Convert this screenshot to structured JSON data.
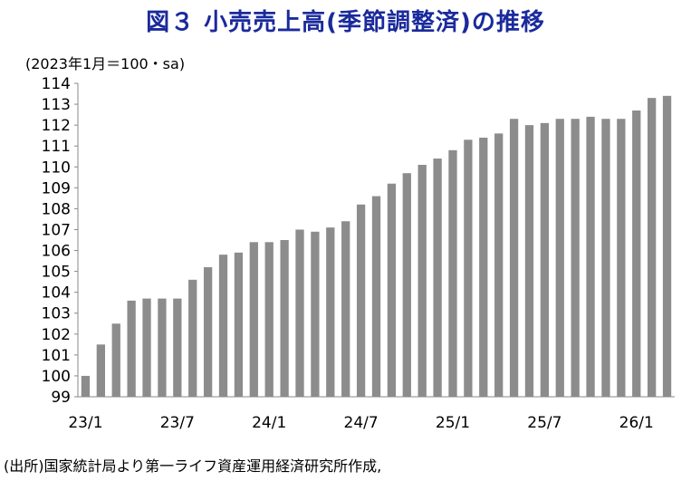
{
  "title": "図３ 小売売上高(季節調整済)の推移",
  "unit_label": "(2023年1月＝100・sa)",
  "source": "(出所)国家統計局より第一ライフ資産運用経済研究所作成,",
  "colors": {
    "title": "#1a2a9c",
    "bar": "#8c8c8c",
    "axis": "#888888"
  },
  "chart_data": {
    "type": "bar",
    "title": "図３ 小売売上高(季節調整済)の推移",
    "ylabel": "(2023年1月＝100・sa)",
    "xlabel": "",
    "ylim": [
      99,
      114
    ],
    "yticks": [
      99,
      100,
      101,
      102,
      103,
      104,
      105,
      106,
      107,
      108,
      109,
      110,
      111,
      112,
      113,
      114
    ],
    "grid": false,
    "categories": [
      "23/1",
      "23/2",
      "23/3",
      "23/4",
      "23/5",
      "23/6",
      "23/7",
      "23/8",
      "23/9",
      "23/10",
      "23/11",
      "23/12",
      "24/1",
      "24/2",
      "24/3",
      "24/4",
      "24/5",
      "24/6",
      "24/7",
      "24/8",
      "24/9",
      "24/10",
      "24/11",
      "24/12",
      "25/1",
      "25/2",
      "25/3",
      "25/4",
      "25/5",
      "25/6",
      "25/7",
      "25/8",
      "25/9",
      "25/10",
      "25/11",
      "25/12",
      "26/1",
      "26/2",
      "26/3"
    ],
    "xtick_labels": [
      {
        "index": 0,
        "label": "23/1"
      },
      {
        "index": 6,
        "label": "23/7"
      },
      {
        "index": 12,
        "label": "24/1"
      },
      {
        "index": 18,
        "label": "24/7"
      },
      {
        "index": 24,
        "label": "25/1"
      },
      {
        "index": 30,
        "label": "25/7"
      },
      {
        "index": 36,
        "label": "26/1"
      }
    ],
    "values": [
      100.0,
      101.5,
      102.5,
      103.6,
      103.7,
      103.7,
      103.7,
      104.6,
      105.2,
      105.8,
      105.9,
      106.4,
      106.4,
      106.5,
      107.0,
      106.9,
      107.1,
      107.4,
      108.2,
      108.6,
      109.2,
      109.7,
      110.1,
      110.4,
      110.8,
      111.3,
      111.4,
      111.6,
      112.3,
      112.0,
      112.1,
      112.3,
      112.3,
      112.4,
      112.3,
      112.3,
      112.7,
      113.3,
      113.4
    ]
  }
}
